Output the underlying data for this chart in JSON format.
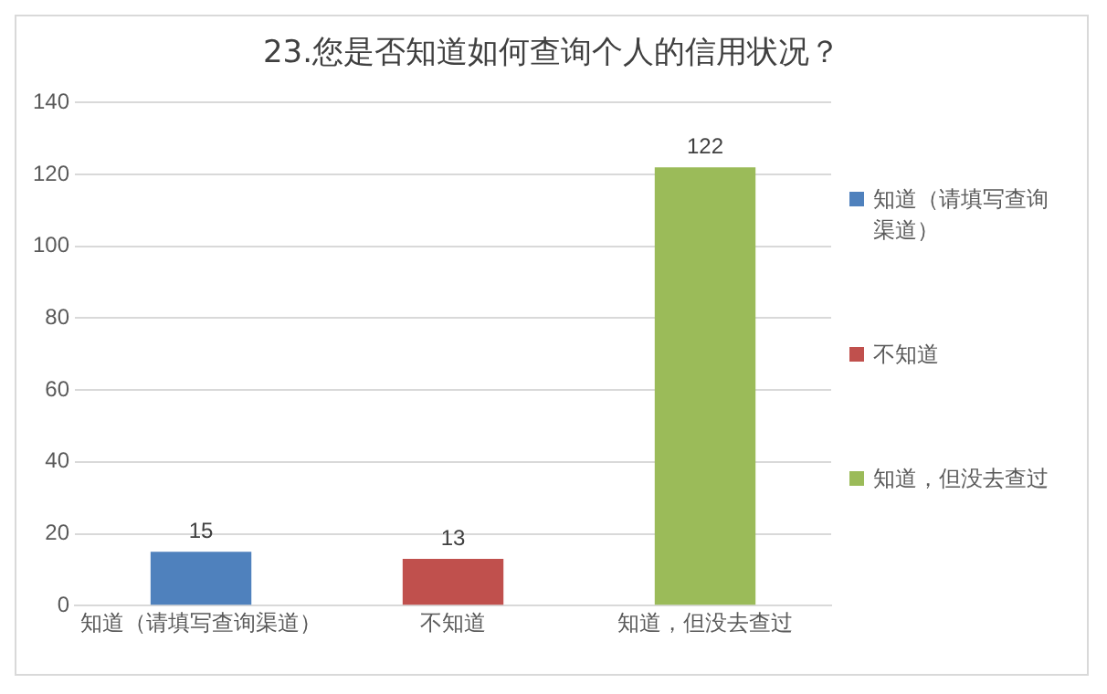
{
  "chart_data": {
    "type": "bar",
    "title": "23.您是否知道如何查询个人的信用状况？",
    "categories": [
      "知道（请填写查询渠道）",
      "不知道",
      "知道，但没去查过"
    ],
    "series": [
      {
        "name": "知道（请填写查询渠道）",
        "color": "#4f81bd",
        "values": [
          15,
          null,
          null
        ]
      },
      {
        "name": "不知道",
        "color": "#c0504d",
        "values": [
          null,
          13,
          null
        ]
      },
      {
        "name": "知道，但没去查过",
        "color": "#9bbb59",
        "values": [
          null,
          null,
          122
        ]
      }
    ],
    "ylim": [
      0,
      140
    ],
    "yticks": [
      0,
      20,
      40,
      60,
      80,
      100,
      120,
      140
    ],
    "grid": "y",
    "legend": "right",
    "data_labels": true
  }
}
